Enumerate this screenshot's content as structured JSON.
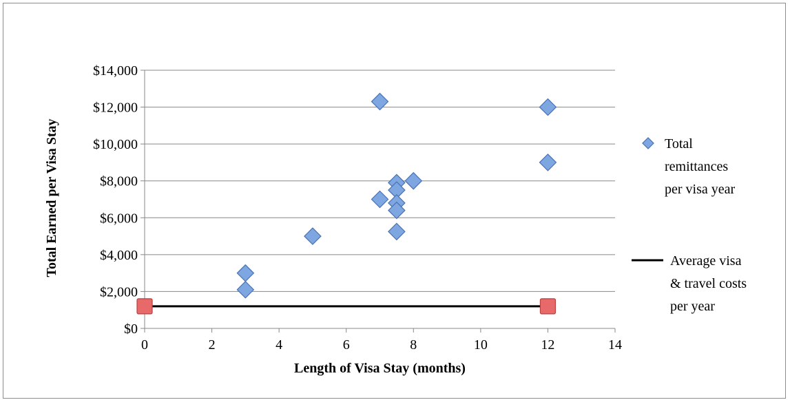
{
  "chart_data": {
    "type": "scatter",
    "xlabel": "Length of Visa Stay (months)",
    "ylabel": "Total Earned per Visa Stay",
    "xlim": [
      0,
      14
    ],
    "ylim": [
      0,
      14000
    ],
    "x_ticks": [
      0,
      2,
      4,
      6,
      8,
      10,
      12,
      14
    ],
    "y_ticks": [
      0,
      2000,
      4000,
      6000,
      8000,
      10000,
      12000,
      14000
    ],
    "x_tick_labels": [
      "0",
      "2",
      "4",
      "6",
      "8",
      "10",
      "12",
      "14"
    ],
    "y_tick_labels": [
      "$0",
      "$2,000",
      "$4,000",
      "$6,000",
      "$8,000",
      "$10,000",
      "$12,000",
      "$14,000"
    ],
    "grid": "horizontal major gridlines",
    "legend_position": "right",
    "series": [
      {
        "name": "Total remittances per visa year",
        "legend_lines": [
          "Total",
          "remittances",
          "per visa year"
        ],
        "marker": "diamond",
        "color": "#7ea6e0",
        "stroke": "#4a72b0",
        "points": [
          {
            "x": 3,
            "y": 3000
          },
          {
            "x": 3,
            "y": 2100
          },
          {
            "x": 5,
            "y": 5000
          },
          {
            "x": 7,
            "y": 12300
          },
          {
            "x": 7,
            "y": 7000
          },
          {
            "x": 7.5,
            "y": 7900
          },
          {
            "x": 7.5,
            "y": 7500
          },
          {
            "x": 7.5,
            "y": 6800
          },
          {
            "x": 7.5,
            "y": 6400
          },
          {
            "x": 7.5,
            "y": 5250
          },
          {
            "x": 8,
            "y": 8000
          },
          {
            "x": 12,
            "y": 12000
          },
          {
            "x": 12,
            "y": 9000
          }
        ]
      },
      {
        "name": "Average visa & travel costs per year",
        "legend_lines": [
          "Average visa",
          "& travel costs",
          "per year"
        ],
        "marker": "square",
        "line": true,
        "color": "#e8696a",
        "stroke": "#b84040",
        "line_color": "#000000",
        "points": [
          {
            "x": 0,
            "y": 1200
          },
          {
            "x": 12,
            "y": 1200
          }
        ]
      }
    ]
  }
}
